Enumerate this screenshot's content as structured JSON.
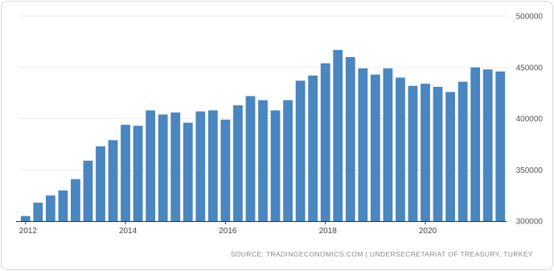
{
  "colors": {
    "bar": "#4a86c0",
    "grid": "#ececec",
    "axis": "#333333",
    "border": "#d8d8d8"
  },
  "chart_data": {
    "type": "bar",
    "title": "",
    "xlabel": "",
    "ylabel": "",
    "ylim": [
      300000,
      500000
    ],
    "y_ticks": [
      500000,
      450000,
      400000,
      350000,
      300000
    ],
    "y_tick_labels": [
      "500000",
      "450000",
      "400000",
      "350000",
      "300000"
    ],
    "x_tick_labels": [
      {
        "label": "2012",
        "bar_index": 0
      },
      {
        "label": "2014",
        "bar_index": 8
      },
      {
        "label": "2016",
        "bar_index": 16
      },
      {
        "label": "2018",
        "bar_index": 24
      },
      {
        "label": "2020",
        "bar_index": 32
      }
    ],
    "grid": true,
    "legend": "none",
    "y_axis_side": "right",
    "values": [
      305000,
      318000,
      325000,
      330000,
      341000,
      359000,
      373000,
      379000,
      394000,
      393000,
      408000,
      404000,
      406000,
      396000,
      407000,
      408000,
      399000,
      413000,
      422000,
      418000,
      408000,
      418000,
      437000,
      442000,
      454000,
      467000,
      460000,
      449000,
      443000,
      449000,
      440000,
      432000,
      434000,
      431000,
      426000,
      436000,
      450000,
      448000,
      446000
    ]
  },
  "source_text": "SOURCE: TRADINGECONOMICS.COM | UNDERSECRETARIAT OF TREASURY, TURKEY"
}
